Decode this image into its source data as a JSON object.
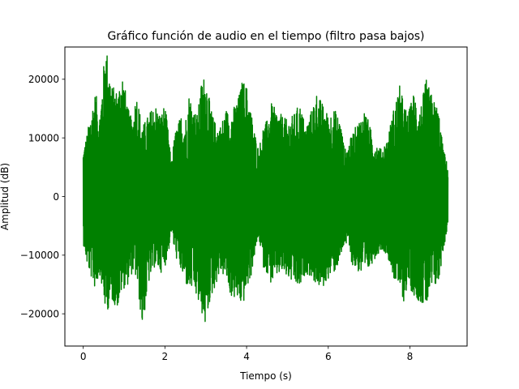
{
  "chart_data": {
    "type": "line",
    "title": "Gráfico función de audio en el tiempo (filtro pasa bajos)",
    "xlabel": "Tiempo (s)",
    "ylabel": "Amplitud (dB)",
    "xlim": [
      -0.45,
      9.4
    ],
    "ylim": [
      -25500,
      25500
    ],
    "x_ticks": [
      0,
      2,
      4,
      6,
      8
    ],
    "y_ticks": [
      -20000,
      -10000,
      0,
      10000,
      20000
    ],
    "grid": false,
    "legend": "none",
    "line_color": "#008000",
    "duration": 8.93,
    "envelope": {
      "x": [
        0.0,
        0.1,
        0.2,
        0.3,
        0.4,
        0.55,
        0.7,
        0.85,
        0.95,
        1.1,
        1.2,
        1.3,
        1.45,
        1.6,
        1.75,
        1.9,
        2.0,
        2.1,
        2.15,
        2.25,
        2.4,
        2.5,
        2.6,
        2.7,
        2.8,
        2.9,
        3.0,
        3.1,
        3.2,
        3.35,
        3.5,
        3.6,
        3.8,
        3.9,
        4.0,
        4.1,
        4.2,
        4.3,
        4.4,
        4.5,
        4.6,
        4.7,
        4.85,
        5.0,
        5.15,
        5.3,
        5.45,
        5.6,
        5.7,
        5.85,
        6.0,
        6.15,
        6.3,
        6.4,
        6.5,
        6.6,
        6.75,
        6.9,
        7.1,
        7.3,
        7.45,
        7.6,
        7.75,
        7.85,
        7.95,
        8.1,
        8.25,
        8.4,
        8.55,
        8.7,
        8.8,
        8.93
      ],
      "upper": [
        8000,
        11000,
        15000,
        18000,
        14000,
        26500,
        19000,
        18000,
        22000,
        15000,
        13000,
        18000,
        12000,
        14000,
        16000,
        14000,
        16000,
        10000,
        6000,
        11000,
        14000,
        13000,
        18000,
        15000,
        14000,
        20000,
        21000,
        16000,
        13000,
        12000,
        15000,
        14000,
        17000,
        20000,
        19000,
        15000,
        11000,
        8000,
        12000,
        13000,
        16000,
        15000,
        14000,
        13000,
        14000,
        16000,
        12000,
        15000,
        18000,
        16000,
        14000,
        15000,
        13000,
        8000,
        9000,
        11000,
        13000,
        15000,
        10000,
        8000,
        10000,
        15000,
        19000,
        16000,
        14000,
        18000,
        15000,
        20000,
        17000,
        15000,
        9000,
        5000
      ],
      "lower": [
        -8000,
        -12000,
        -14000,
        -16000,
        -13000,
        -20000,
        -18000,
        -19000,
        -16000,
        -15000,
        -13000,
        -14000,
        -22500,
        -15000,
        -12000,
        -13000,
        -12000,
        -9000,
        -6000,
        -10000,
        -13000,
        -15000,
        -16000,
        -16000,
        -18000,
        -20000,
        -22500,
        -18000,
        -16000,
        -13000,
        -14000,
        -17000,
        -18000,
        -19000,
        -16000,
        -14000,
        -10000,
        -7000,
        -12000,
        -13000,
        -15000,
        -14000,
        -13000,
        -14000,
        -15000,
        -16000,
        -13000,
        -14000,
        -15000,
        -16000,
        -14000,
        -13000,
        -11000,
        -8000,
        -9000,
        -12000,
        -13000,
        -14000,
        -11000,
        -9000,
        -10000,
        -14000,
        -16000,
        -18000,
        -15000,
        -17000,
        -18000,
        -19000,
        -16000,
        -15000,
        -10000,
        -5000
      ]
    }
  }
}
